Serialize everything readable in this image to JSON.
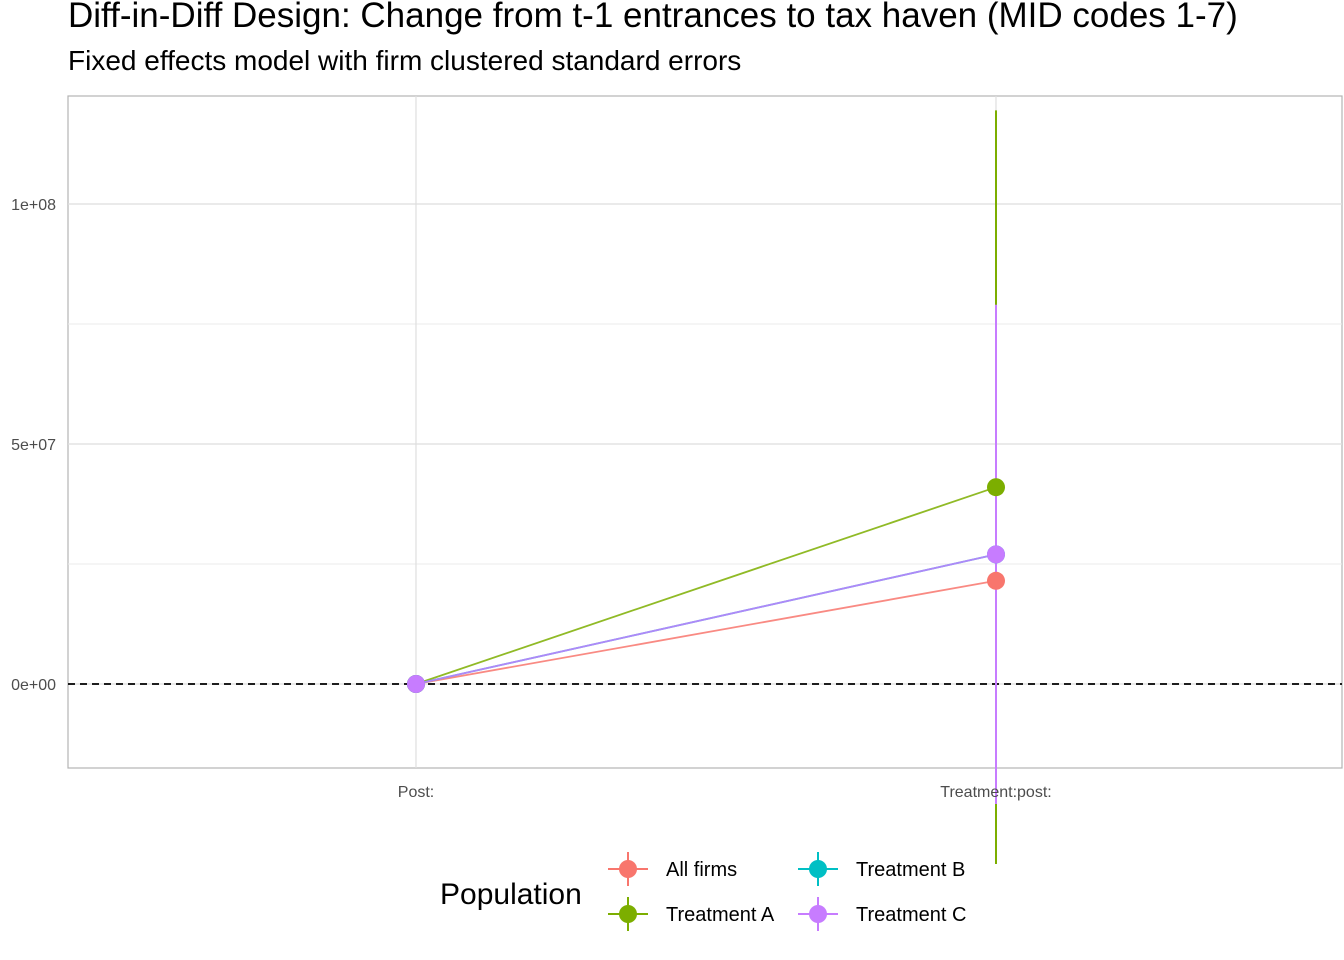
{
  "chart_data": {
    "type": "line",
    "title": "Diff-in-Diff Design: Change from t-1 entrances to tax haven (MID codes 1-7)",
    "subtitle": "Fixed effects model with firm clustered standard errors",
    "xlabel": "",
    "ylabel": "",
    "categories": [
      "Post:",
      "Treatment:post:"
    ],
    "ylim": [
      -17500000,
      122500000
    ],
    "yticks": [
      0,
      50000000,
      100000000
    ],
    "ytick_labels": [
      "0e+00",
      "5e+07",
      "1e+08"
    ],
    "reference_line": 0,
    "grid": true,
    "legend": {
      "title": "Population",
      "position": "bottom"
    },
    "series": [
      {
        "name": "All firms",
        "color": "#F8766D",
        "values": [
          0,
          21500000
        ],
        "ci_low": [
          0,
          0
        ],
        "ci_high": [
          0,
          0
        ]
      },
      {
        "name": "Treatment A",
        "color": "#7CAE00",
        "values": [
          0,
          41000000
        ],
        "ci_low": [
          0,
          -37500000
        ],
        "ci_high": [
          0,
          119500000
        ]
      },
      {
        "name": "Treatment B",
        "color": "#00BFC4",
        "values": [
          0,
          27000000
        ],
        "ci_low": [
          0,
          0
        ],
        "ci_high": [
          0,
          0
        ]
      },
      {
        "name": "Treatment C",
        "color": "#C77CFF",
        "values": [
          0,
          27000000
        ],
        "ci_low": [
          0,
          -25000000
        ],
        "ci_high": [
          0,
          79000000
        ]
      }
    ]
  }
}
